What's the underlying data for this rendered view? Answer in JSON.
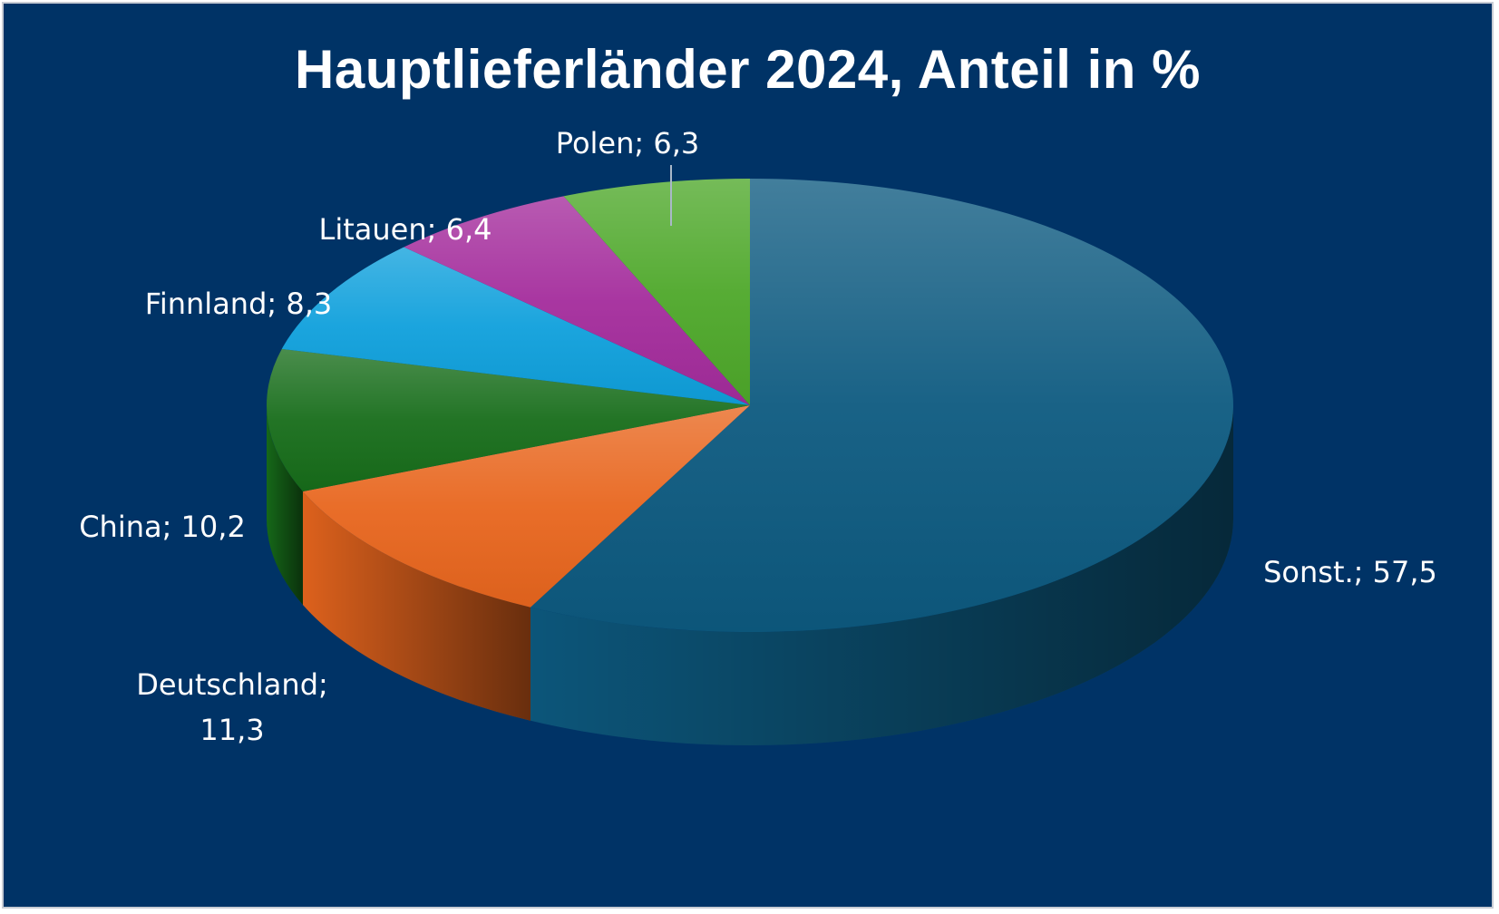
{
  "chart_data": {
    "type": "pie",
    "title": "Hauptlieferländer 2024, Anteil in %",
    "slices": [
      {
        "label": "Sonst.",
        "value": 57.5,
        "display": "Sonst.; 57,5",
        "color": "#0d5a80"
      },
      {
        "label": "Deutschland",
        "value": 11.3,
        "display": [
          "Deutschland;",
          "11,3"
        ],
        "color": "#e8661e"
      },
      {
        "label": "China",
        "value": 10.2,
        "display": "China; 10,2",
        "color": "#176d1a"
      },
      {
        "label": "Finnland",
        "value": 8.3,
        "display": "Finnland; 8,3",
        "color": "#0fa0dc"
      },
      {
        "label": "Litauen",
        "value": 6.4,
        "display": "Litauen; 6,4",
        "color": "#a42c9c"
      },
      {
        "label": "Polen",
        "value": 6.3,
        "display": "Polen; 6,3",
        "color": "#4ea82a"
      }
    ],
    "background_color": "#003366",
    "legend": "none",
    "style": "3d"
  }
}
